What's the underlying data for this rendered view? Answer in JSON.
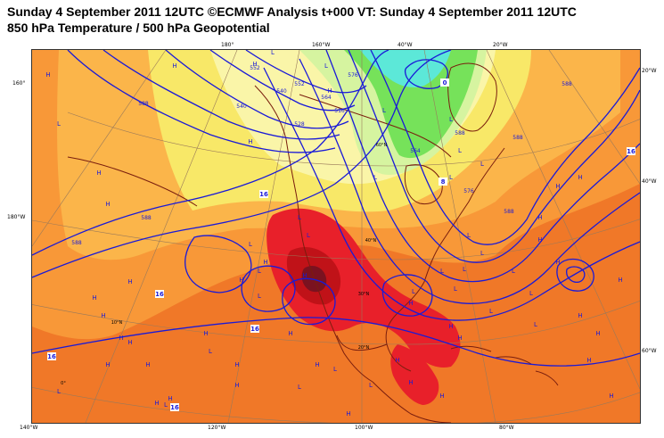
{
  "header": {
    "title_line1": "Sunday 4 September 2011 12UTC ©ECMWF Analysis t+000 VT: Sunday 4 September 2011 12UTC",
    "title_line2": "850 hPa Temperature / 500 hPa Geopotential"
  },
  "edge_labels": {
    "top": [
      "180°",
      "160°W",
      "40°W",
      "20°W"
    ],
    "bottom": [
      "140°W",
      "120°W",
      "100°W",
      "80°W"
    ],
    "left": [
      "160°",
      "180°W"
    ],
    "right": [
      "20°W",
      "40°W",
      "60°W"
    ]
  },
  "interior_labels": [
    "60°N",
    "40°N",
    "30°N",
    "20°N",
    "10°N",
    "0°"
  ],
  "contour_labels": [
    "540",
    "552",
    "564",
    "576",
    "588",
    "588",
    "588",
    "588",
    "588",
    "588",
    "588",
    "576",
    "564",
    "552",
    "540",
    "528",
    "516"
  ],
  "temperature_labels": [
    "16",
    "16",
    "16",
    "16",
    "16",
    "16",
    "0",
    "8"
  ],
  "pressure_centers": [
    "H",
    "H",
    "H",
    "H",
    "H",
    "H",
    "H",
    "H",
    "H",
    "H",
    "H",
    "H",
    "H",
    "H",
    "H",
    "H",
    "H",
    "H",
    "H",
    "H",
    "H",
    "H",
    "H",
    "H",
    "H",
    "H",
    "H",
    "H",
    "H",
    "H",
    "H",
    "H",
    "H",
    "H",
    "H",
    "H",
    "H",
    "H",
    "H",
    "H",
    "H",
    "L",
    "L",
    "L",
    "L",
    "L",
    "L",
    "L",
    "L",
    "L",
    "L",
    "L",
    "L",
    "L",
    "L",
    "L",
    "L",
    "L",
    "L",
    "L",
    "L",
    "L",
    "L",
    "L",
    "L",
    "L",
    "L",
    "L",
    "L",
    "L",
    "L"
  ],
  "colors": {
    "background": "#ffffff",
    "warm_orange": "#f07828",
    "orange": "#f89838",
    "light_orange": "#fbb54a",
    "yellow": "#f8e868",
    "pale_yellow": "#faf5a8",
    "light_green": "#d6f4a0",
    "green": "#76e25a",
    "cyan": "#5ce8d8",
    "red": "#e8202a",
    "dark_red": "#c01218",
    "maroon": "#7a1220",
    "contour": "#1a1ad8",
    "coastline": "#7a1e0e",
    "grid": "#9a7a5a"
  }
}
